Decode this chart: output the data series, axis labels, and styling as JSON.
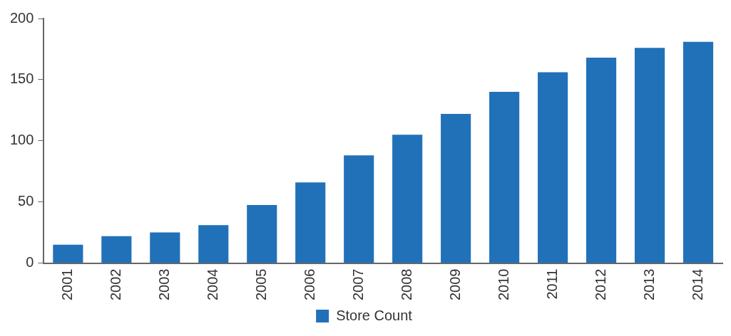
{
  "chart_data": {
    "type": "bar",
    "categories": [
      "2001",
      "2002",
      "2003",
      "2004",
      "2005",
      "2006",
      "2007",
      "2008",
      "2009",
      "2010",
      "2011",
      "2012",
      "2013",
      "2014"
    ],
    "series": [
      {
        "name": "Store Count",
        "color": "#2171b9",
        "values": [
          15,
          22,
          25,
          31,
          47.5,
          66,
          88,
          105,
          122,
          140,
          156,
          168,
          176,
          181
        ]
      }
    ],
    "ylim": [
      0,
      200
    ],
    "yticks": [
      0,
      50,
      100,
      150,
      200
    ],
    "grid": false,
    "legend": "bottom"
  }
}
